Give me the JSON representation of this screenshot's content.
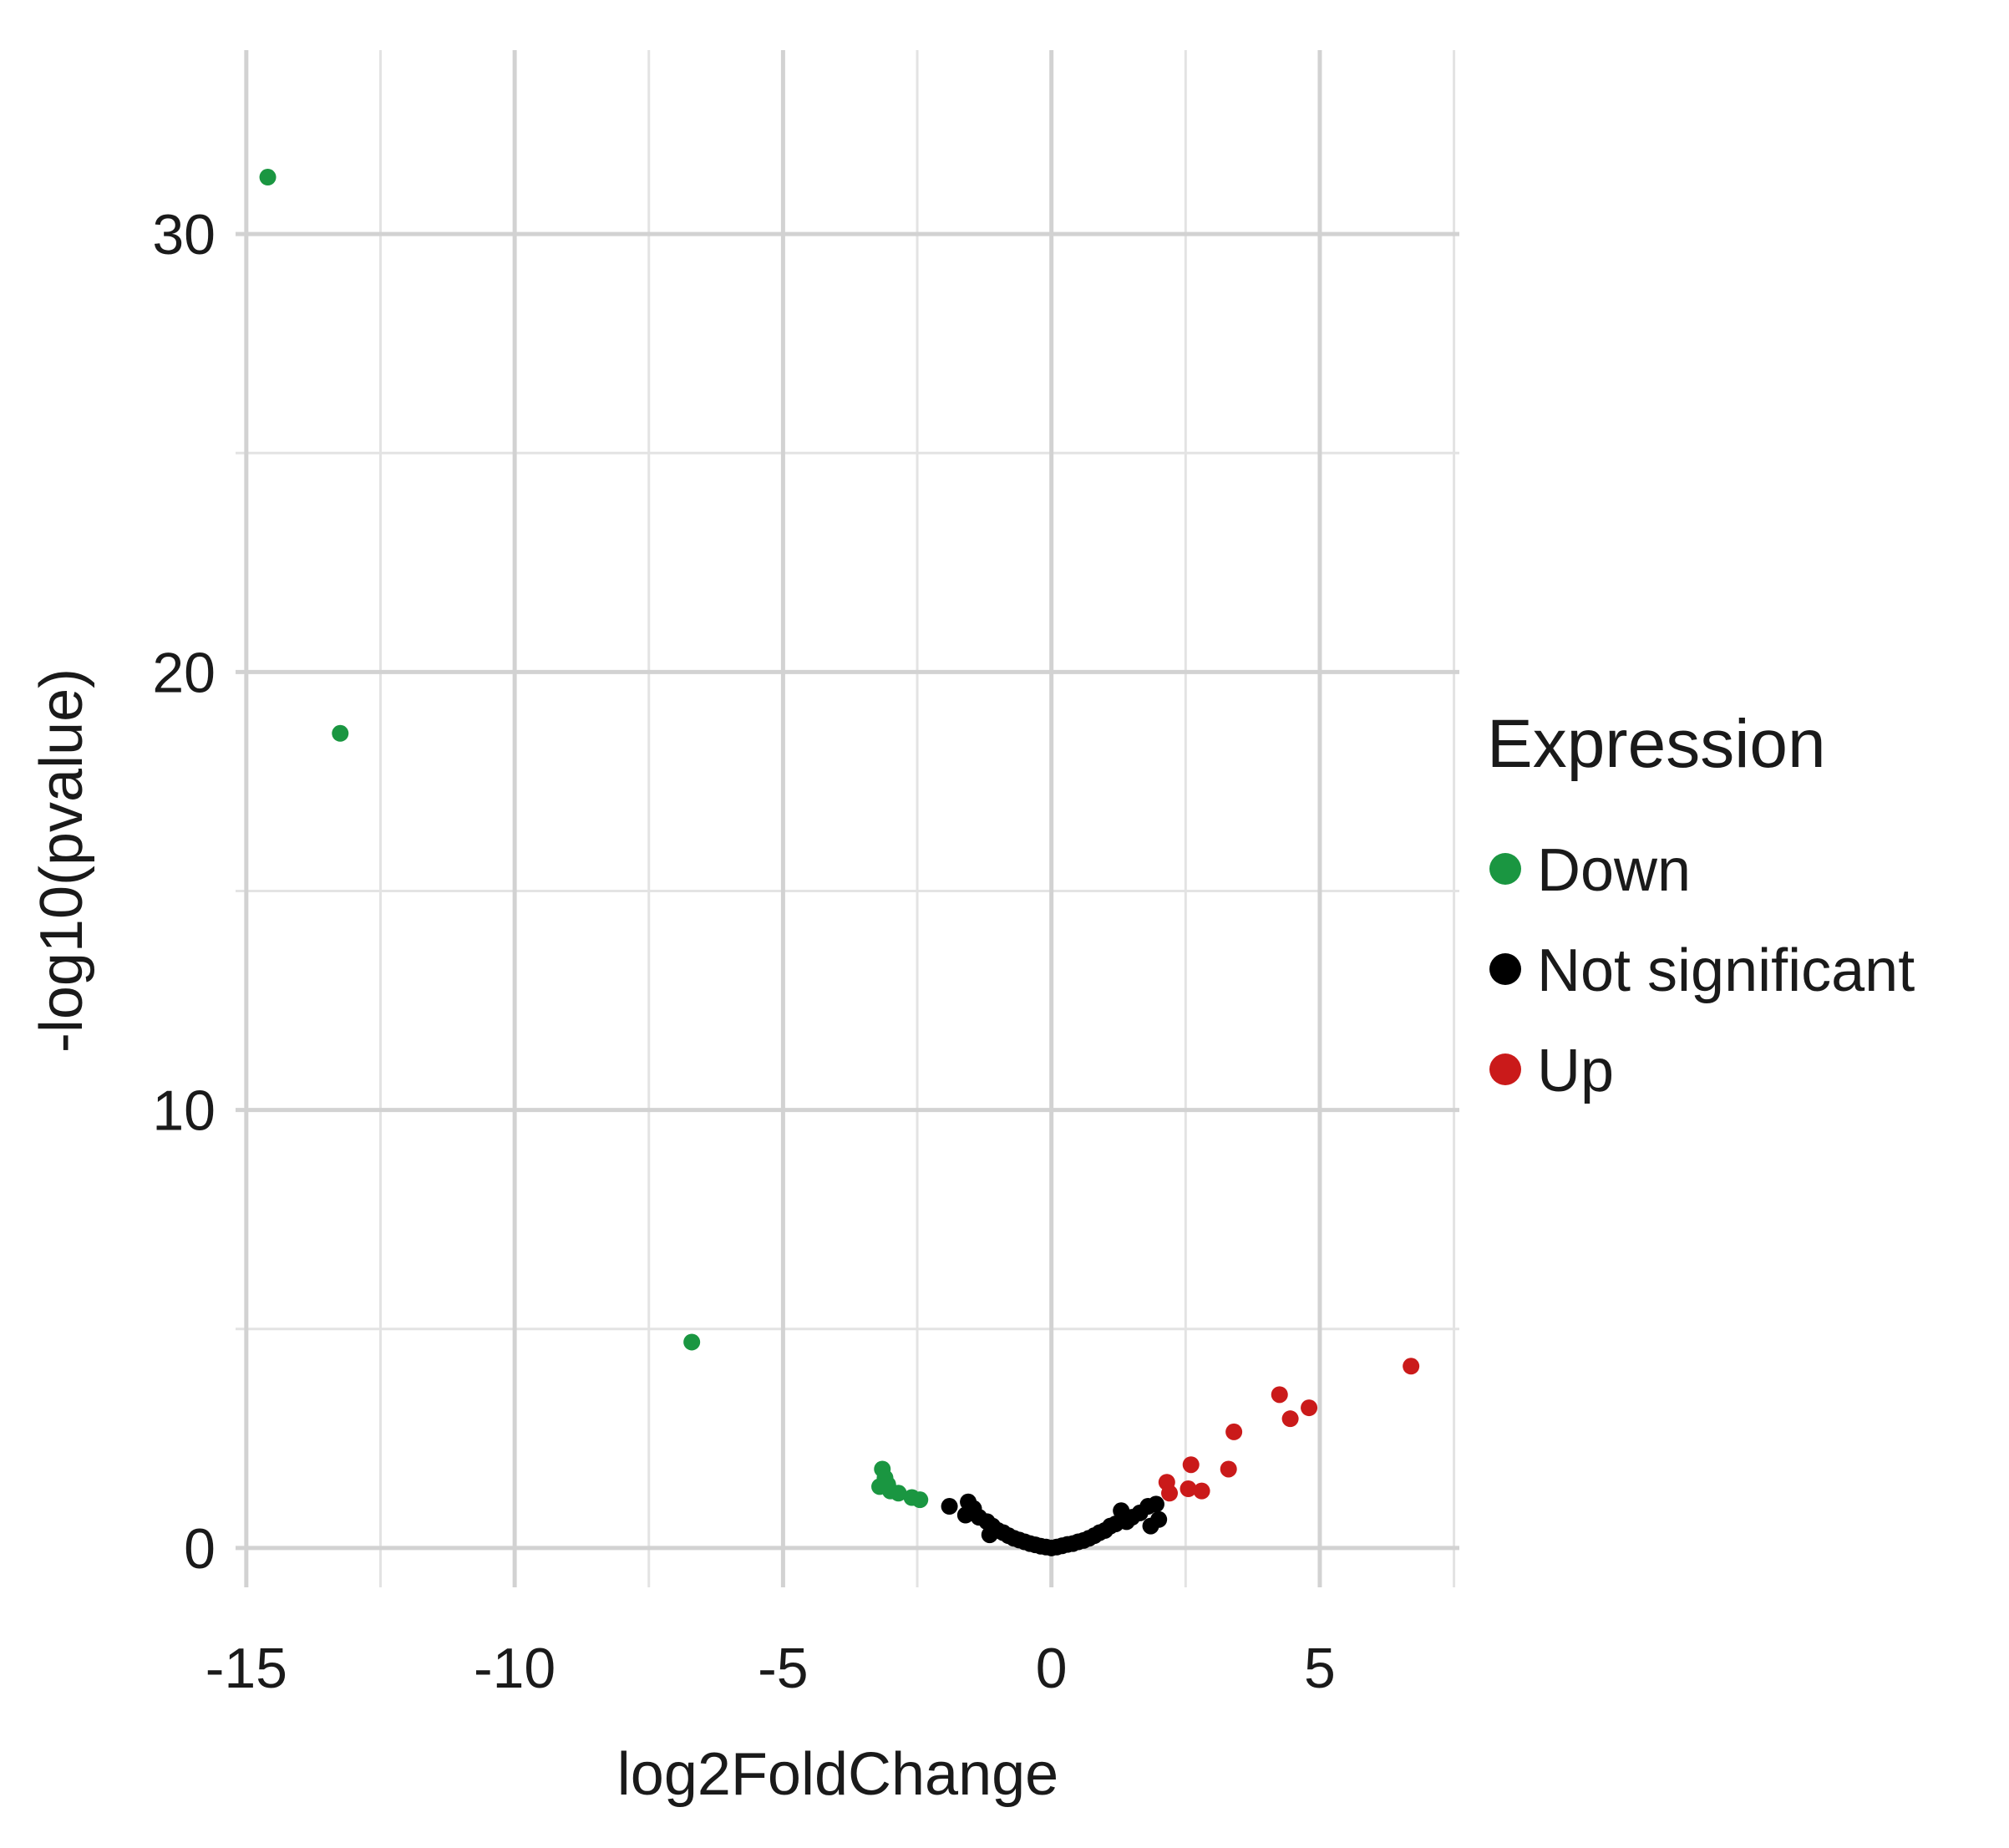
{
  "chart_data": {
    "type": "scatter",
    "title": "",
    "xlabel": "log2FoldChange",
    "ylabel": "-log10(pvalue)",
    "xlim": [
      -15.2,
      7.6
    ],
    "ylim": [
      -0.9,
      34.2
    ],
    "x_ticks": [
      -15,
      -10,
      -5,
      0,
      5
    ],
    "x_tick_labels": [
      "-15",
      "-10",
      "-5",
      "0",
      "5"
    ],
    "y_ticks": [
      0,
      10,
      20,
      30
    ],
    "y_tick_labels": [
      "0",
      "10",
      "20",
      "30"
    ],
    "x_minor_gridlines": [
      -12.5,
      -7.5,
      -2.5,
      2.5,
      7.5
    ],
    "y_minor_gridlines": [
      5,
      15,
      25
    ],
    "grid": true,
    "legend": {
      "title": "Expression",
      "placement": "right"
    },
    "series": [
      {
        "name": "Down",
        "color": "#1a9641",
        "points": [
          [
            -14.6,
            31.3
          ],
          [
            -13.25,
            18.6
          ],
          [
            -6.7,
            4.7
          ],
          [
            -3.15,
            1.8
          ],
          [
            -3.1,
            1.6
          ],
          [
            -3.2,
            1.4
          ],
          [
            -3.0,
            1.3
          ],
          [
            -2.85,
            1.25
          ],
          [
            -2.6,
            1.15
          ],
          [
            -2.45,
            1.1
          ],
          [
            -3.05,
            1.45
          ]
        ]
      },
      {
        "name": "Not significant",
        "color": "#000000",
        "points": [
          [
            -1.9,
            0.95
          ],
          [
            -1.55,
            1.05
          ],
          [
            -1.45,
            0.9
          ],
          [
            -1.6,
            0.75
          ],
          [
            -1.35,
            0.7
          ],
          [
            -1.2,
            0.6
          ],
          [
            -1.1,
            0.5
          ],
          [
            -1.0,
            0.4
          ],
          [
            -1.15,
            0.3
          ],
          [
            -0.9,
            0.35
          ],
          [
            -0.8,
            0.28
          ],
          [
            -0.7,
            0.22
          ],
          [
            -0.6,
            0.18
          ],
          [
            -0.5,
            0.14
          ],
          [
            -0.4,
            0.1
          ],
          [
            -0.3,
            0.07
          ],
          [
            -0.2,
            0.04
          ],
          [
            -0.1,
            0.02
          ],
          [
            0.0,
            0.0
          ],
          [
            0.1,
            0.02
          ],
          [
            0.2,
            0.05
          ],
          [
            0.3,
            0.08
          ],
          [
            0.4,
            0.1
          ],
          [
            0.5,
            0.14
          ],
          [
            0.6,
            0.17
          ],
          [
            0.7,
            0.22
          ],
          [
            0.8,
            0.28
          ],
          [
            0.9,
            0.35
          ],
          [
            1.0,
            0.4
          ],
          [
            1.1,
            0.5
          ],
          [
            1.2,
            0.55
          ],
          [
            1.3,
            0.85
          ],
          [
            1.4,
            0.6
          ],
          [
            1.5,
            0.7
          ],
          [
            1.65,
            0.8
          ],
          [
            1.8,
            0.95
          ],
          [
            1.85,
            0.5
          ],
          [
            1.95,
            1.0
          ],
          [
            2.0,
            0.65
          ]
        ]
      },
      {
        "name": "Up",
        "color": "#ca1a1a",
        "points": [
          [
            6.7,
            4.15
          ],
          [
            4.25,
            3.5
          ],
          [
            4.8,
            3.2
          ],
          [
            4.45,
            2.95
          ],
          [
            3.4,
            2.65
          ],
          [
            2.6,
            1.9
          ],
          [
            3.3,
            1.8
          ],
          [
            2.15,
            1.5
          ],
          [
            2.55,
            1.35
          ],
          [
            2.8,
            1.3
          ],
          [
            2.2,
            1.25
          ]
        ]
      }
    ]
  }
}
